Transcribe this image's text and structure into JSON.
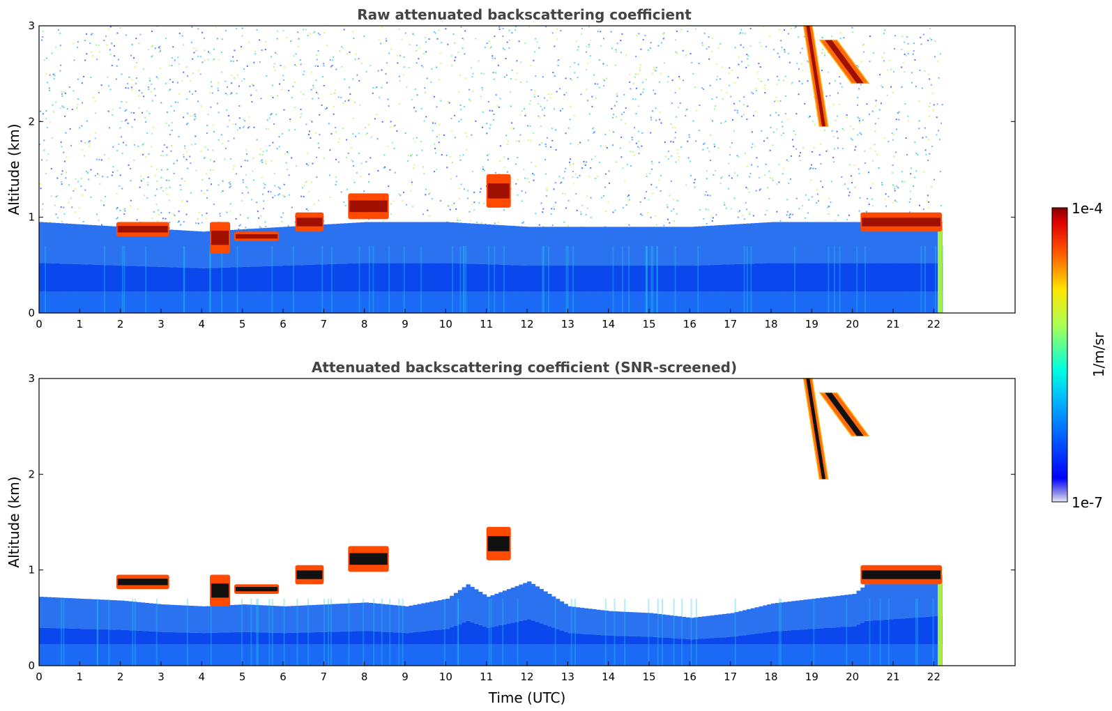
{
  "chart_data": [
    {
      "type": "heatmap",
      "title": "Raw attenuated backscattering coefficient",
      "xlabel": "",
      "ylabel": "Altitude (km)",
      "xlim": [
        0,
        24
      ],
      "ylim": [
        0,
        3
      ],
      "x_ticks": [
        "0",
        "1",
        "2",
        "3",
        "4",
        "5",
        "6",
        "7",
        "8",
        "9",
        "10",
        "11",
        "12",
        "13",
        "14",
        "15",
        "16",
        "17",
        "18",
        "19",
        "20",
        "21",
        "22"
      ],
      "y_ticks": [
        "0",
        "1",
        "2",
        "3"
      ],
      "data_end_hour": 22.2,
      "features": {
        "boundary_layer_top_km": [
          [
            0,
            0.95
          ],
          [
            2,
            0.9
          ],
          [
            4,
            0.85
          ],
          [
            6,
            0.9
          ],
          [
            8,
            0.95
          ],
          [
            10,
            0.95
          ],
          [
            12,
            0.9
          ],
          [
            14,
            0.9
          ],
          [
            16,
            0.9
          ],
          [
            18,
            0.95
          ],
          [
            20,
            0.95
          ],
          [
            22.2,
            0.95
          ]
        ],
        "clouds": [
          {
            "start": 1.9,
            "end": 3.2,
            "base_km": 0.8,
            "top_km": 0.95
          },
          {
            "start": 4.2,
            "end": 4.7,
            "base_km": 0.62,
            "top_km": 0.95
          },
          {
            "start": 4.8,
            "end": 5.9,
            "base_km": 0.75,
            "top_km": 0.85
          },
          {
            "start": 6.3,
            "end": 7.0,
            "base_km": 0.85,
            "top_km": 1.05
          },
          {
            "start": 7.6,
            "end": 8.6,
            "base_km": 0.98,
            "top_km": 1.25
          },
          {
            "start": 11.0,
            "end": 11.6,
            "base_km": 1.1,
            "top_km": 1.45
          },
          {
            "start": 20.2,
            "end": 22.2,
            "base_km": 0.85,
            "top_km": 1.05
          }
        ],
        "fall_streaks": [
          {
            "start": 18.8,
            "end": 19.4,
            "top_km": 3.0,
            "bottom_km": 1.95
          },
          {
            "start": 19.2,
            "end": 20.4,
            "top_km": 2.85,
            "bottom_km": 2.4
          }
        ]
      }
    },
    {
      "type": "heatmap",
      "title": "Attenuated backscattering coefficient (SNR-screened)",
      "xlabel": "Time (UTC)",
      "ylabel": "Altitude (km)",
      "xlim": [
        0,
        24
      ],
      "ylim": [
        0,
        3
      ],
      "x_ticks": [
        "0",
        "1",
        "2",
        "3",
        "4",
        "5",
        "6",
        "7",
        "8",
        "9",
        "10",
        "11",
        "12",
        "13",
        "14",
        "15",
        "16",
        "17",
        "18",
        "19",
        "20",
        "21",
        "22"
      ],
      "y_ticks": [
        "0",
        "1",
        "2",
        "3"
      ],
      "data_end_hour": 22.2,
      "features": {
        "screened_signal_top_km": [
          [
            0,
            0.72
          ],
          [
            1,
            0.7
          ],
          [
            2,
            0.68
          ],
          [
            3,
            0.64
          ],
          [
            4,
            0.62
          ],
          [
            5,
            0.64
          ],
          [
            6,
            0.62
          ],
          [
            7,
            0.64
          ],
          [
            8,
            0.66
          ],
          [
            9,
            0.62
          ],
          [
            10,
            0.7
          ],
          [
            10.5,
            0.85
          ],
          [
            11,
            0.72
          ],
          [
            12,
            0.88
          ],
          [
            13,
            0.62
          ],
          [
            14,
            0.57
          ],
          [
            15,
            0.55
          ],
          [
            16,
            0.5
          ],
          [
            17,
            0.55
          ],
          [
            18,
            0.65
          ],
          [
            19,
            0.7
          ],
          [
            20,
            0.75
          ],
          [
            20.3,
            0.85
          ],
          [
            22.2,
            0.95
          ]
        ],
        "clouds": [
          {
            "start": 1.9,
            "end": 3.2,
            "base_km": 0.8,
            "top_km": 0.95
          },
          {
            "start": 4.2,
            "end": 4.7,
            "base_km": 0.62,
            "top_km": 0.95
          },
          {
            "start": 4.8,
            "end": 5.9,
            "base_km": 0.75,
            "top_km": 0.85
          },
          {
            "start": 6.3,
            "end": 7.0,
            "base_km": 0.85,
            "top_km": 1.05
          },
          {
            "start": 7.6,
            "end": 8.6,
            "base_km": 0.98,
            "top_km": 1.25
          },
          {
            "start": 11.0,
            "end": 11.6,
            "base_km": 1.1,
            "top_km": 1.45
          },
          {
            "start": 20.2,
            "end": 22.2,
            "base_km": 0.85,
            "top_km": 1.05
          }
        ],
        "fall_streaks": [
          {
            "start": 18.8,
            "end": 19.4,
            "top_km": 3.0,
            "bottom_km": 1.95
          },
          {
            "start": 19.2,
            "end": 20.4,
            "top_km": 2.85,
            "bottom_km": 2.4
          }
        ]
      }
    }
  ],
  "colorbar": {
    "label": "1/m/sr",
    "max_label": "1e-4",
    "min_label": "1e-7",
    "colormap": "jet",
    "scale": "log",
    "range": [
      1e-07,
      0.0001
    ]
  }
}
